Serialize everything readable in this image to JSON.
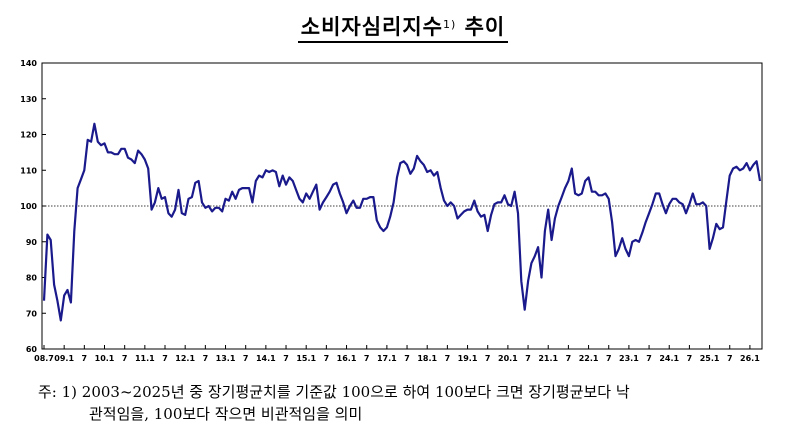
{
  "title": {
    "main": "소비자심리지수",
    "footnote_mark": "1)",
    "suffix": " 추이"
  },
  "note": {
    "line1": "주: 1) 2003~2025년 중 장기평균치를 기준값 100으로 하여 100보다 크면 장기평균보다 낙",
    "line2": "관적임을, 100보다 작으면 비관적임을 의미"
  },
  "chart_data": {
    "type": "line",
    "title": "소비자심리지수 추이",
    "xlabel": "",
    "ylabel": "",
    "ylim": [
      60,
      140
    ],
    "y_ticks": [
      60,
      70,
      80,
      90,
      100,
      110,
      120,
      130,
      140
    ],
    "reference_line": 100,
    "reference_line_style": "dotted",
    "grid": false,
    "line_color": "#1a1a8c",
    "x_start": "2008-07",
    "x_tick_labels": [
      "08.7",
      "09.1",
      "7",
      "10.1",
      "7",
      "11.1",
      "7",
      "12.1",
      "7",
      "13.1",
      "7",
      "14.1",
      "7",
      "15.1",
      "7",
      "16.1",
      "7",
      "17.1",
      "7",
      "18.1",
      "7",
      "19.1",
      "7",
      "20.1",
      "7",
      "21.1",
      "7",
      "22.1",
      "7",
      "23.1",
      "7",
      "24.1",
      "7",
      "25.1",
      "7",
      "26.1"
    ],
    "series": [
      {
        "values": [
          73.5,
          92,
          90.5,
          78,
          73.5,
          68,
          75,
          76.5,
          73,
          93,
          105,
          107.5,
          110,
          118.5,
          118,
          123,
          118,
          117,
          117.5,
          115,
          115,
          114.5,
          114.5,
          116,
          116,
          113.5,
          113,
          112,
          115.5,
          114.5,
          113,
          110.5,
          99,
          101,
          105,
          102,
          102.5,
          98,
          97,
          99,
          104.5,
          98,
          97.5,
          102,
          102.5,
          106.5,
          107,
          101,
          99.5,
          100,
          98.5,
          99.5,
          99.5,
          98.5,
          102,
          101.5,
          104,
          102,
          104.5,
          105,
          105,
          105,
          101,
          107,
          108.5,
          108,
          110,
          109.5,
          110,
          109.5,
          105.5,
          108.5,
          106,
          108,
          107,
          104.5,
          102,
          101,
          103.5,
          102,
          104,
          106,
          99,
          101,
          102.5,
          104,
          106,
          106.5,
          103.5,
          101,
          98,
          100,
          101.5,
          99.5,
          99.5,
          102,
          102,
          102.5,
          102.5,
          96,
          94,
          93,
          94,
          97,
          101,
          108,
          112,
          112.5,
          111.5,
          109,
          110.5,
          114,
          112.5,
          111.5,
          109.5,
          110,
          108.5,
          109.5,
          105,
          101.5,
          100,
          101,
          100,
          96.5,
          97.5,
          98.5,
          99,
          99,
          101.5,
          98.5,
          97,
          97.5,
          93,
          97.5,
          100.5,
          101,
          101,
          103,
          100.5,
          100,
          104,
          98,
          79,
          71,
          79,
          84,
          86,
          88.5,
          80,
          93,
          99,
          90.5,
          96.5,
          100,
          102.5,
          105,
          107,
          110.5,
          103.5,
          103,
          103.5,
          107,
          108,
          104,
          104,
          103,
          103,
          103.5,
          102,
          95.5,
          86,
          88,
          91,
          88,
          86,
          90,
          90.5,
          90,
          92.5,
          95.5,
          98,
          100.5,
          103.5,
          103.5,
          100.5,
          98,
          100.5,
          102,
          102,
          101,
          100.5,
          98,
          100.5,
          103.5,
          100.5,
          100.5,
          101,
          100,
          88,
          91,
          95,
          93.5,
          94,
          101.5,
          108.5,
          110.5,
          111,
          110,
          110.5,
          112,
          110,
          111.5,
          112.5,
          107
        ]
      }
    ]
  }
}
